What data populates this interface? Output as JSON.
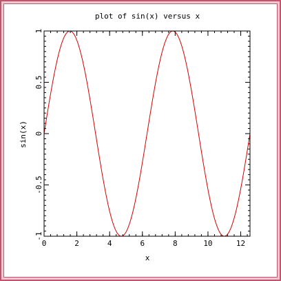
{
  "colors": {
    "frame": "#c0556e",
    "frame_inner": "#f2c6d0",
    "line": "#d40000",
    "axes": "#000000"
  },
  "chart_data": {
    "type": "line",
    "title": "plot of sin(x) versus x",
    "xlabel": "x",
    "ylabel": "sin(x)",
    "function": "sin(x)",
    "xlim": [
      0,
      12.566
    ],
    "ylim": [
      -1,
      1
    ],
    "xticks": [
      0,
      2,
      4,
      6,
      8,
      10,
      12
    ],
    "xtick_labels": [
      "0",
      "2",
      "4",
      "6",
      "8",
      "10",
      "12"
    ],
    "yticks": [
      -1,
      -0.5,
      0,
      0.5,
      1
    ],
    "ytick_labels": [
      "-1",
      "-0.5",
      "0",
      "0.5",
      "1"
    ],
    "x_minor_step": 0.4,
    "y_minor_step": 0.05,
    "grid": false,
    "series": [
      {
        "x": [
          0,
          0.5,
          1.0,
          1.5708,
          2.0,
          2.5,
          3.1416,
          3.5,
          4.0,
          4.7124,
          5.5,
          6.2832,
          7.0,
          7.854,
          8.5,
          9.4248,
          10.0,
          10.9956,
          11.5,
          12.566
        ],
        "y": [
          0,
          0.479,
          0.841,
          1.0,
          0.909,
          0.598,
          0.0,
          -0.351,
          -0.757,
          -1.0,
          -0.706,
          0.0,
          0.657,
          1.0,
          0.798,
          0.0,
          -0.544,
          -1.0,
          -0.875,
          0.0
        ]
      }
    ]
  }
}
